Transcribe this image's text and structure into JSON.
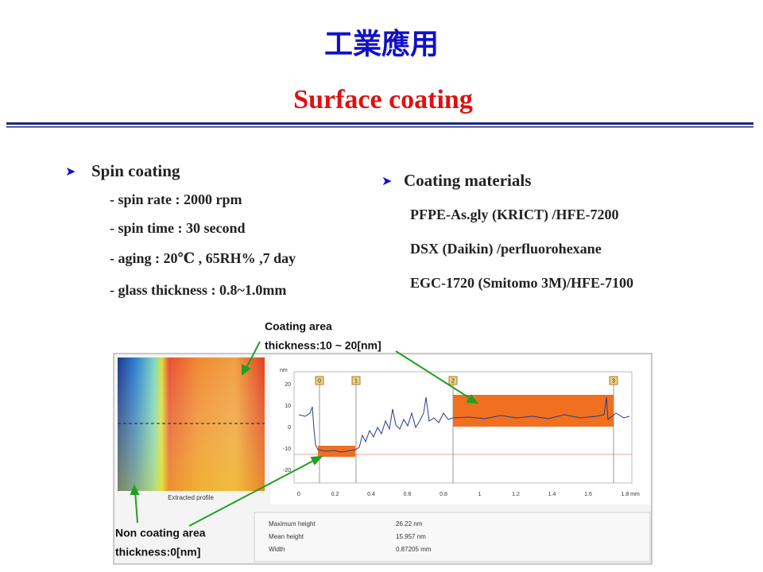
{
  "header": {
    "title": "工業應用",
    "subtitle": "Surface coating"
  },
  "left": {
    "heading": "Spin coating",
    "items": [
      "- spin rate :  2000 rpm",
      "- spin time : 30 second",
      "- aging : 20℃ , 65RH% ,7 day",
      "- glass thickness :  0.8~1.0mm"
    ]
  },
  "right": {
    "heading": "Coating materials",
    "items": [
      "PFPE-As.gly (KRICT) /HFE-7200",
      "DSX (Daikin) /perfluorohexane",
      "EGC-1720 (Smitomo 3M)/HFE-7100"
    ]
  },
  "figure": {
    "coating_label": "Coating area",
    "coating_thickness": "thickness:10 ~  20[nm]",
    "non_coating_label": "Non coating area",
    "non_coating_thickness": "thickness:0[nm]",
    "panel_label": "Extracted profile",
    "unit_label": "nm",
    "y_ticks": [
      "20",
      "10",
      "0",
      "-10",
      "-20"
    ],
    "x_ticks": [
      "0",
      "0.2",
      "0.4",
      "0.6",
      "0.8",
      "1",
      "1.2",
      "1.4",
      "1.6",
      "1.8 mm"
    ],
    "markers": [
      "0",
      "1",
      "2",
      "3"
    ],
    "stats": [
      [
        "Maximum height",
        "26.22 nm"
      ],
      [
        "Mean height",
        "15.957 nm"
      ],
      [
        "Width",
        "0.87205 mm"
      ]
    ]
  }
}
